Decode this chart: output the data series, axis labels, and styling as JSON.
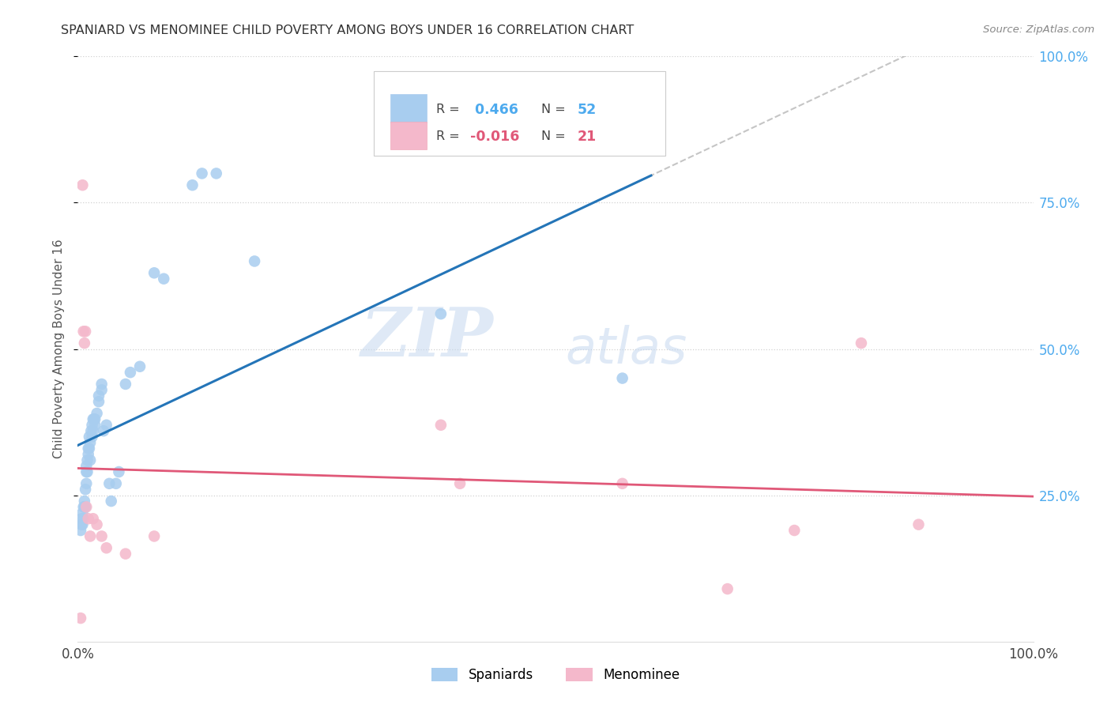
{
  "title": "SPANIARD VS MENOMINEE CHILD POVERTY AMONG BOYS UNDER 16 CORRELATION CHART",
  "source": "Source: ZipAtlas.com",
  "ylabel": "Child Poverty Among Boys Under 16",
  "legend_label_blue": "Spaniards",
  "legend_label_pink": "Menominee",
  "blue_R": 0.466,
  "blue_N": 52,
  "pink_R": -0.016,
  "pink_N": 21,
  "blue_color": "#A8CDEF",
  "pink_color": "#F4B8CB",
  "blue_line_color": "#2475B8",
  "pink_line_color": "#E05878",
  "dashed_line_color": "#BBBBBB",
  "right_tick_color": "#4DAAEE",
  "background_color": "#FFFFFF",
  "watermark_zip": "ZIP",
  "watermark_atlas": "atlas",
  "blue_x": [
    0.003,
    0.004,
    0.004,
    0.005,
    0.005,
    0.006,
    0.006,
    0.007,
    0.007,
    0.008,
    0.008,
    0.009,
    0.009,
    0.009,
    0.01,
    0.01,
    0.011,
    0.011,
    0.012,
    0.012,
    0.013,
    0.013,
    0.014,
    0.015,
    0.015,
    0.016,
    0.016,
    0.017,
    0.018,
    0.018,
    0.02,
    0.022,
    0.022,
    0.025,
    0.025,
    0.027,
    0.03,
    0.033,
    0.035,
    0.04,
    0.043,
    0.05,
    0.055,
    0.065,
    0.08,
    0.09,
    0.12,
    0.13,
    0.145,
    0.185,
    0.38,
    0.57
  ],
  "blue_y": [
    0.19,
    0.2,
    0.21,
    0.2,
    0.22,
    0.21,
    0.23,
    0.23,
    0.24,
    0.23,
    0.26,
    0.27,
    0.29,
    0.3,
    0.29,
    0.31,
    0.32,
    0.33,
    0.33,
    0.35,
    0.31,
    0.34,
    0.36,
    0.35,
    0.37,
    0.36,
    0.38,
    0.38,
    0.37,
    0.38,
    0.39,
    0.41,
    0.42,
    0.43,
    0.44,
    0.36,
    0.37,
    0.27,
    0.24,
    0.27,
    0.29,
    0.44,
    0.46,
    0.47,
    0.63,
    0.62,
    0.78,
    0.8,
    0.8,
    0.65,
    0.56,
    0.45
  ],
  "pink_x": [
    0.003,
    0.005,
    0.006,
    0.007,
    0.008,
    0.009,
    0.011,
    0.013,
    0.016,
    0.02,
    0.025,
    0.03,
    0.05,
    0.08,
    0.38,
    0.4,
    0.57,
    0.68,
    0.75,
    0.82,
    0.88
  ],
  "pink_y": [
    0.04,
    0.78,
    0.53,
    0.51,
    0.53,
    0.23,
    0.21,
    0.18,
    0.21,
    0.2,
    0.18,
    0.16,
    0.15,
    0.18,
    0.37,
    0.27,
    0.27,
    0.09,
    0.19,
    0.51,
    0.2
  ]
}
